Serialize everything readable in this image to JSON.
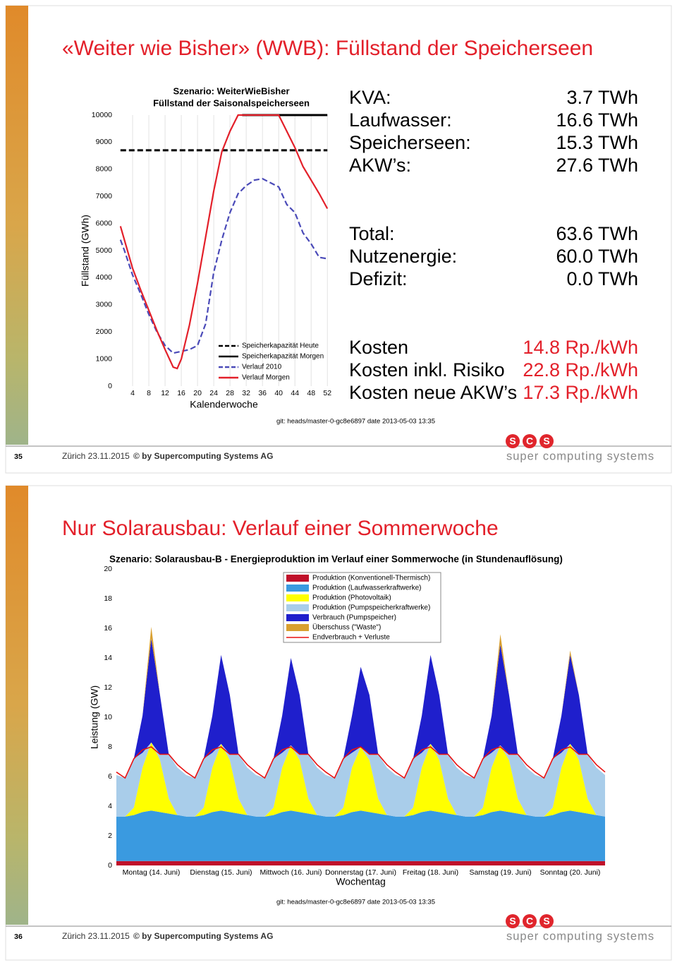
{
  "slides": [
    {
      "title": "«Weiter wie Bisher» (WWB): Füllstand der Speicherseen",
      "number": "35",
      "place_date": "Zürich 23.11.2015",
      "copyright": "© by Supercomputing Systems AG",
      "git": "git: heads/master-0-gc8e6897 date 2013-05-03 13:35",
      "energy": [
        {
          "label": "KVA:",
          "value": "3.7 TWh"
        },
        {
          "label": "Laufwasser:",
          "value": "16.6 TWh"
        },
        {
          "label": "Speicherseen:",
          "value": "15.3 TWh"
        },
        {
          "label": "AKW’s:",
          "value": "27.6 TWh"
        }
      ],
      "balance": [
        {
          "label": "Total:",
          "value": "63.6 TWh"
        },
        {
          "label": "Nutzenergie:",
          "value": "60.0 TWh"
        },
        {
          "label": "Defizit:",
          "value": "0.0 TWh"
        }
      ],
      "costs": [
        {
          "label": "Kosten",
          "value": "14.8 Rp./kWh"
        },
        {
          "label": "Kosten inkl. Risiko",
          "value": "22.8 Rp./kWh"
        },
        {
          "label": "Kosten neue AKW’s",
          "value": "17.3 Rp./kWh"
        }
      ]
    },
    {
      "title": "Nur Solarausbau: Verlauf einer Sommerwoche",
      "number": "36",
      "place_date": "Zürich 23.11.2015",
      "copyright": "© by Supercomputing Systems AG",
      "git": "git: heads/master-0-gc8e6897 date 2013-05-03 13:35"
    }
  ],
  "logo": {
    "letters": [
      "S",
      "C",
      "S"
    ],
    "text": "super computing systems"
  },
  "chart_data": [
    {
      "type": "line",
      "title": "Szenario: WeiterWieBisher",
      "subtitle": "Füllstand der Saisonalspeicherseen",
      "x_label": "Kalenderwoche",
      "y_label": "Füllstand (GWh)",
      "xlim": [
        0,
        53
      ],
      "xticks": [
        4,
        8,
        12,
        16,
        20,
        24,
        28,
        32,
        36,
        40,
        44,
        48,
        52
      ],
      "ylim": [
        0,
        10000
      ],
      "yticks": [
        0,
        1000,
        2000,
        3000,
        4000,
        5000,
        6000,
        7000,
        8000,
        9000,
        10000
      ],
      "grid": "x",
      "legend": "lower right",
      "series": [
        {
          "name": "Speicherkapazität Heute",
          "color": "#000000",
          "dashed": true,
          "x": [
            1,
            52
          ],
          "values": [
            8700,
            8700
          ]
        },
        {
          "name": "Speicherkapazität Morgen",
          "color": "#000000",
          "dashed": false,
          "x": [
            31,
            52
          ],
          "values": [
            10000,
            10000
          ]
        },
        {
          "name": "Verlauf 2010",
          "color": "#4a4ab8",
          "dashed": true,
          "x": [
            1,
            2,
            4,
            6,
            8,
            10,
            12,
            14,
            16,
            18,
            20,
            22,
            24,
            26,
            28,
            30,
            32,
            34,
            36,
            38,
            40,
            42,
            44,
            46,
            48,
            50,
            52
          ],
          "values": [
            5400,
            5000,
            4100,
            3400,
            2650,
            2000,
            1500,
            1220,
            1280,
            1350,
            1500,
            2300,
            4200,
            5400,
            6400,
            7100,
            7400,
            7600,
            7650,
            7500,
            7350,
            6700,
            6400,
            5650,
            5250,
            4750,
            4700
          ]
        },
        {
          "name": "Verlauf Morgen",
          "color": "#e3202a",
          "dashed": false,
          "x": [
            1,
            4,
            6,
            8,
            10,
            12,
            14,
            15,
            16,
            18,
            20,
            22,
            24,
            26,
            28,
            30,
            32,
            34,
            36,
            38,
            40,
            42,
            44,
            46,
            48,
            50,
            52
          ],
          "values": [
            5900,
            4350,
            3550,
            2800,
            2050,
            1350,
            700,
            650,
            1000,
            2250,
            3800,
            5500,
            7200,
            8650,
            9400,
            10000,
            10000,
            10000,
            10000,
            10000,
            10000,
            9400,
            8800,
            8100,
            7600,
            7100,
            6550
          ]
        }
      ]
    },
    {
      "type": "stacked-area",
      "title": "Szenario: Solarausbau-B - Energieproduktion im Verlauf einer Sommerwoche (in Stundenauflösung)",
      "x_label": "Wochentag",
      "y_label": "Leistung (GW)",
      "xlim": [
        0,
        168
      ],
      "xticks": [
        {
          "value": 12,
          "label": "Montag (14. Juni)"
        },
        {
          "value": 36,
          "label": "Dienstag (15. Juni)"
        },
        {
          "value": 60,
          "label": "Mittwoch (16. Juni)"
        },
        {
          "value": 84,
          "label": "Donnerstag (17. Juni)"
        },
        {
          "value": 108,
          "label": "Freitag (18. Juni)"
        },
        {
          "value": 132,
          "label": "Samstag (19. Juni)"
        },
        {
          "value": 156,
          "label": "Sonntag (20. Juni)"
        }
      ],
      "ylim": [
        0,
        20
      ],
      "yticks": [
        0,
        2,
        4,
        6,
        8,
        10,
        12,
        14,
        16,
        18,
        20
      ],
      "grid": false,
      "legend": "upper center",
      "x": [
        0,
        3,
        6,
        9,
        12,
        15,
        18,
        21,
        24,
        27,
        30,
        33,
        36,
        39,
        42,
        45,
        48,
        51,
        54,
        57,
        60,
        63,
        66,
        69,
        72,
        75,
        78,
        81,
        84,
        87,
        90,
        93,
        96,
        99,
        102,
        105,
        108,
        111,
        114,
        117,
        120,
        123,
        126,
        129,
        132,
        135,
        138,
        141,
        144,
        147,
        150,
        153,
        156,
        159,
        162,
        165,
        168
      ],
      "series": [
        {
          "name": "Produktion (Konventionell-Thermisch)",
          "color": "#c0102a",
          "kind": "area",
          "values": [
            0.3,
            0.3,
            0.3,
            0.3,
            0.3,
            0.3,
            0.3,
            0.3,
            0.3,
            0.3,
            0.3,
            0.3,
            0.3,
            0.3,
            0.3,
            0.3,
            0.3,
            0.3,
            0.3,
            0.3,
            0.3,
            0.3,
            0.3,
            0.3,
            0.3,
            0.3,
            0.3,
            0.3,
            0.3,
            0.3,
            0.3,
            0.3,
            0.3,
            0.3,
            0.3,
            0.3,
            0.3,
            0.3,
            0.3,
            0.3,
            0.3,
            0.3,
            0.3,
            0.3,
            0.3,
            0.3,
            0.3,
            0.3,
            0.3,
            0.3,
            0.3,
            0.3,
            0.3,
            0.3,
            0.3,
            0.3,
            0.3
          ]
        },
        {
          "name": "Produktion (Laufwasserkraftwerke)",
          "color": "#3a9ae0",
          "kind": "area",
          "values": [
            3.0,
            3.0,
            3.1,
            3.3,
            3.4,
            3.3,
            3.2,
            3.1,
            3.0,
            3.0,
            3.1,
            3.3,
            3.4,
            3.3,
            3.2,
            3.1,
            3.0,
            3.0,
            3.1,
            3.3,
            3.4,
            3.3,
            3.2,
            3.1,
            3.0,
            3.0,
            3.1,
            3.3,
            3.4,
            3.3,
            3.2,
            3.1,
            3.0,
            3.0,
            3.1,
            3.3,
            3.4,
            3.3,
            3.2,
            3.1,
            3.0,
            3.0,
            3.1,
            3.3,
            3.4,
            3.3,
            3.2,
            3.1,
            3.0,
            3.0,
            3.1,
            3.3,
            3.4,
            3.3,
            3.2,
            3.1,
            3.0
          ]
        },
        {
          "name": "Produktion (Photovoltaik)",
          "color": "#ffff00",
          "kind": "area",
          "values": [
            0,
            0,
            0.5,
            3.0,
            4.6,
            3.5,
            1.0,
            0,
            0,
            0,
            0.5,
            3.0,
            4.5,
            3.5,
            1.0,
            0,
            0,
            0,
            0.5,
            3.0,
            4.4,
            3.5,
            1.0,
            0,
            0,
            0,
            0.5,
            3.0,
            4.3,
            3.5,
            1.0,
            0,
            0,
            0,
            0.5,
            3.0,
            4.5,
            3.5,
            1.0,
            0,
            0,
            0,
            0.5,
            3.0,
            4.4,
            3.5,
            1.0,
            0,
            0,
            0,
            0.5,
            3.0,
            4.5,
            3.5,
            1.0,
            0,
            0
          ]
        },
        {
          "name": "Produktion (Pumpspeicherkraftwerke)",
          "color": "#a9cdea",
          "kind": "area",
          "values": [
            2.8,
            2.6,
            3.3,
            1.0,
            0,
            0.4,
            3.0,
            3.2,
            2.8,
            2.6,
            3.3,
            1.0,
            0,
            0.4,
            3.0,
            3.2,
            2.8,
            2.6,
            3.3,
            1.0,
            0,
            0.4,
            3.0,
            3.2,
            2.8,
            2.6,
            3.3,
            1.0,
            0,
            0.4,
            3.0,
            3.2,
            2.8,
            2.6,
            3.3,
            1.0,
            0,
            0.4,
            3.0,
            3.2,
            2.8,
            2.6,
            3.3,
            1.0,
            0,
            0.4,
            3.0,
            3.2,
            2.8,
            2.6,
            3.3,
            1.0,
            0,
            0.4,
            3.0,
            3.2,
            2.8
          ]
        },
        {
          "name": "Verbrauch (Pumpspeicher)",
          "color": "#1f1fcc",
          "kind": "area",
          "values": [
            0,
            0,
            0,
            2.5,
            7.0,
            4.0,
            0,
            0,
            0,
            0,
            0,
            2.5,
            6.0,
            4.0,
            0,
            0,
            0,
            0,
            0,
            2.5,
            5.9,
            4.0,
            0,
            0,
            0,
            0,
            0,
            2.5,
            5.4,
            4.0,
            0,
            0,
            0,
            0,
            0,
            2.5,
            6.0,
            4.0,
            0,
            0,
            0,
            0,
            0,
            2.5,
            6.8,
            4.0,
            0,
            0,
            0,
            0,
            0,
            2.5,
            6.0,
            4.0,
            0,
            0,
            0
          ]
        },
        {
          "name": "Überschuss (\"Waste\")",
          "color": "#d9a030",
          "kind": "area",
          "values": [
            0,
            0,
            0,
            0,
            0.8,
            0,
            0,
            0,
            0,
            0,
            0,
            0,
            0,
            0,
            0,
            0,
            0,
            0,
            0,
            0,
            0,
            0,
            0,
            0,
            0,
            0,
            0,
            0,
            0,
            0,
            0,
            0,
            0,
            0,
            0,
            0,
            0,
            0,
            0,
            0,
            0,
            0,
            0,
            0,
            0.7,
            0,
            0,
            0,
            0,
            0,
            0,
            0,
            0.3,
            0,
            0,
            0,
            0
          ]
        },
        {
          "name": "Endverbrauch + Verluste",
          "color": "#e81010",
          "kind": "line",
          "values": [
            6.3,
            5.9,
            7.2,
            7.8,
            8.0,
            7.5,
            7.5,
            6.8,
            6.3,
            5.9,
            7.2,
            7.8,
            8.0,
            7.5,
            7.5,
            6.8,
            6.3,
            5.9,
            7.2,
            7.8,
            8.0,
            7.5,
            7.5,
            6.8,
            6.3,
            5.9,
            7.2,
            7.8,
            8.0,
            7.5,
            7.5,
            6.8,
            6.3,
            5.9,
            7.2,
            7.8,
            8.0,
            7.5,
            7.5,
            6.8,
            6.3,
            5.9,
            7.2,
            7.8,
            8.0,
            7.5,
            7.5,
            6.8,
            6.3,
            5.9,
            7.2,
            7.8,
            8.0,
            7.5,
            7.5,
            6.8,
            6.3
          ]
        }
      ]
    }
  ]
}
